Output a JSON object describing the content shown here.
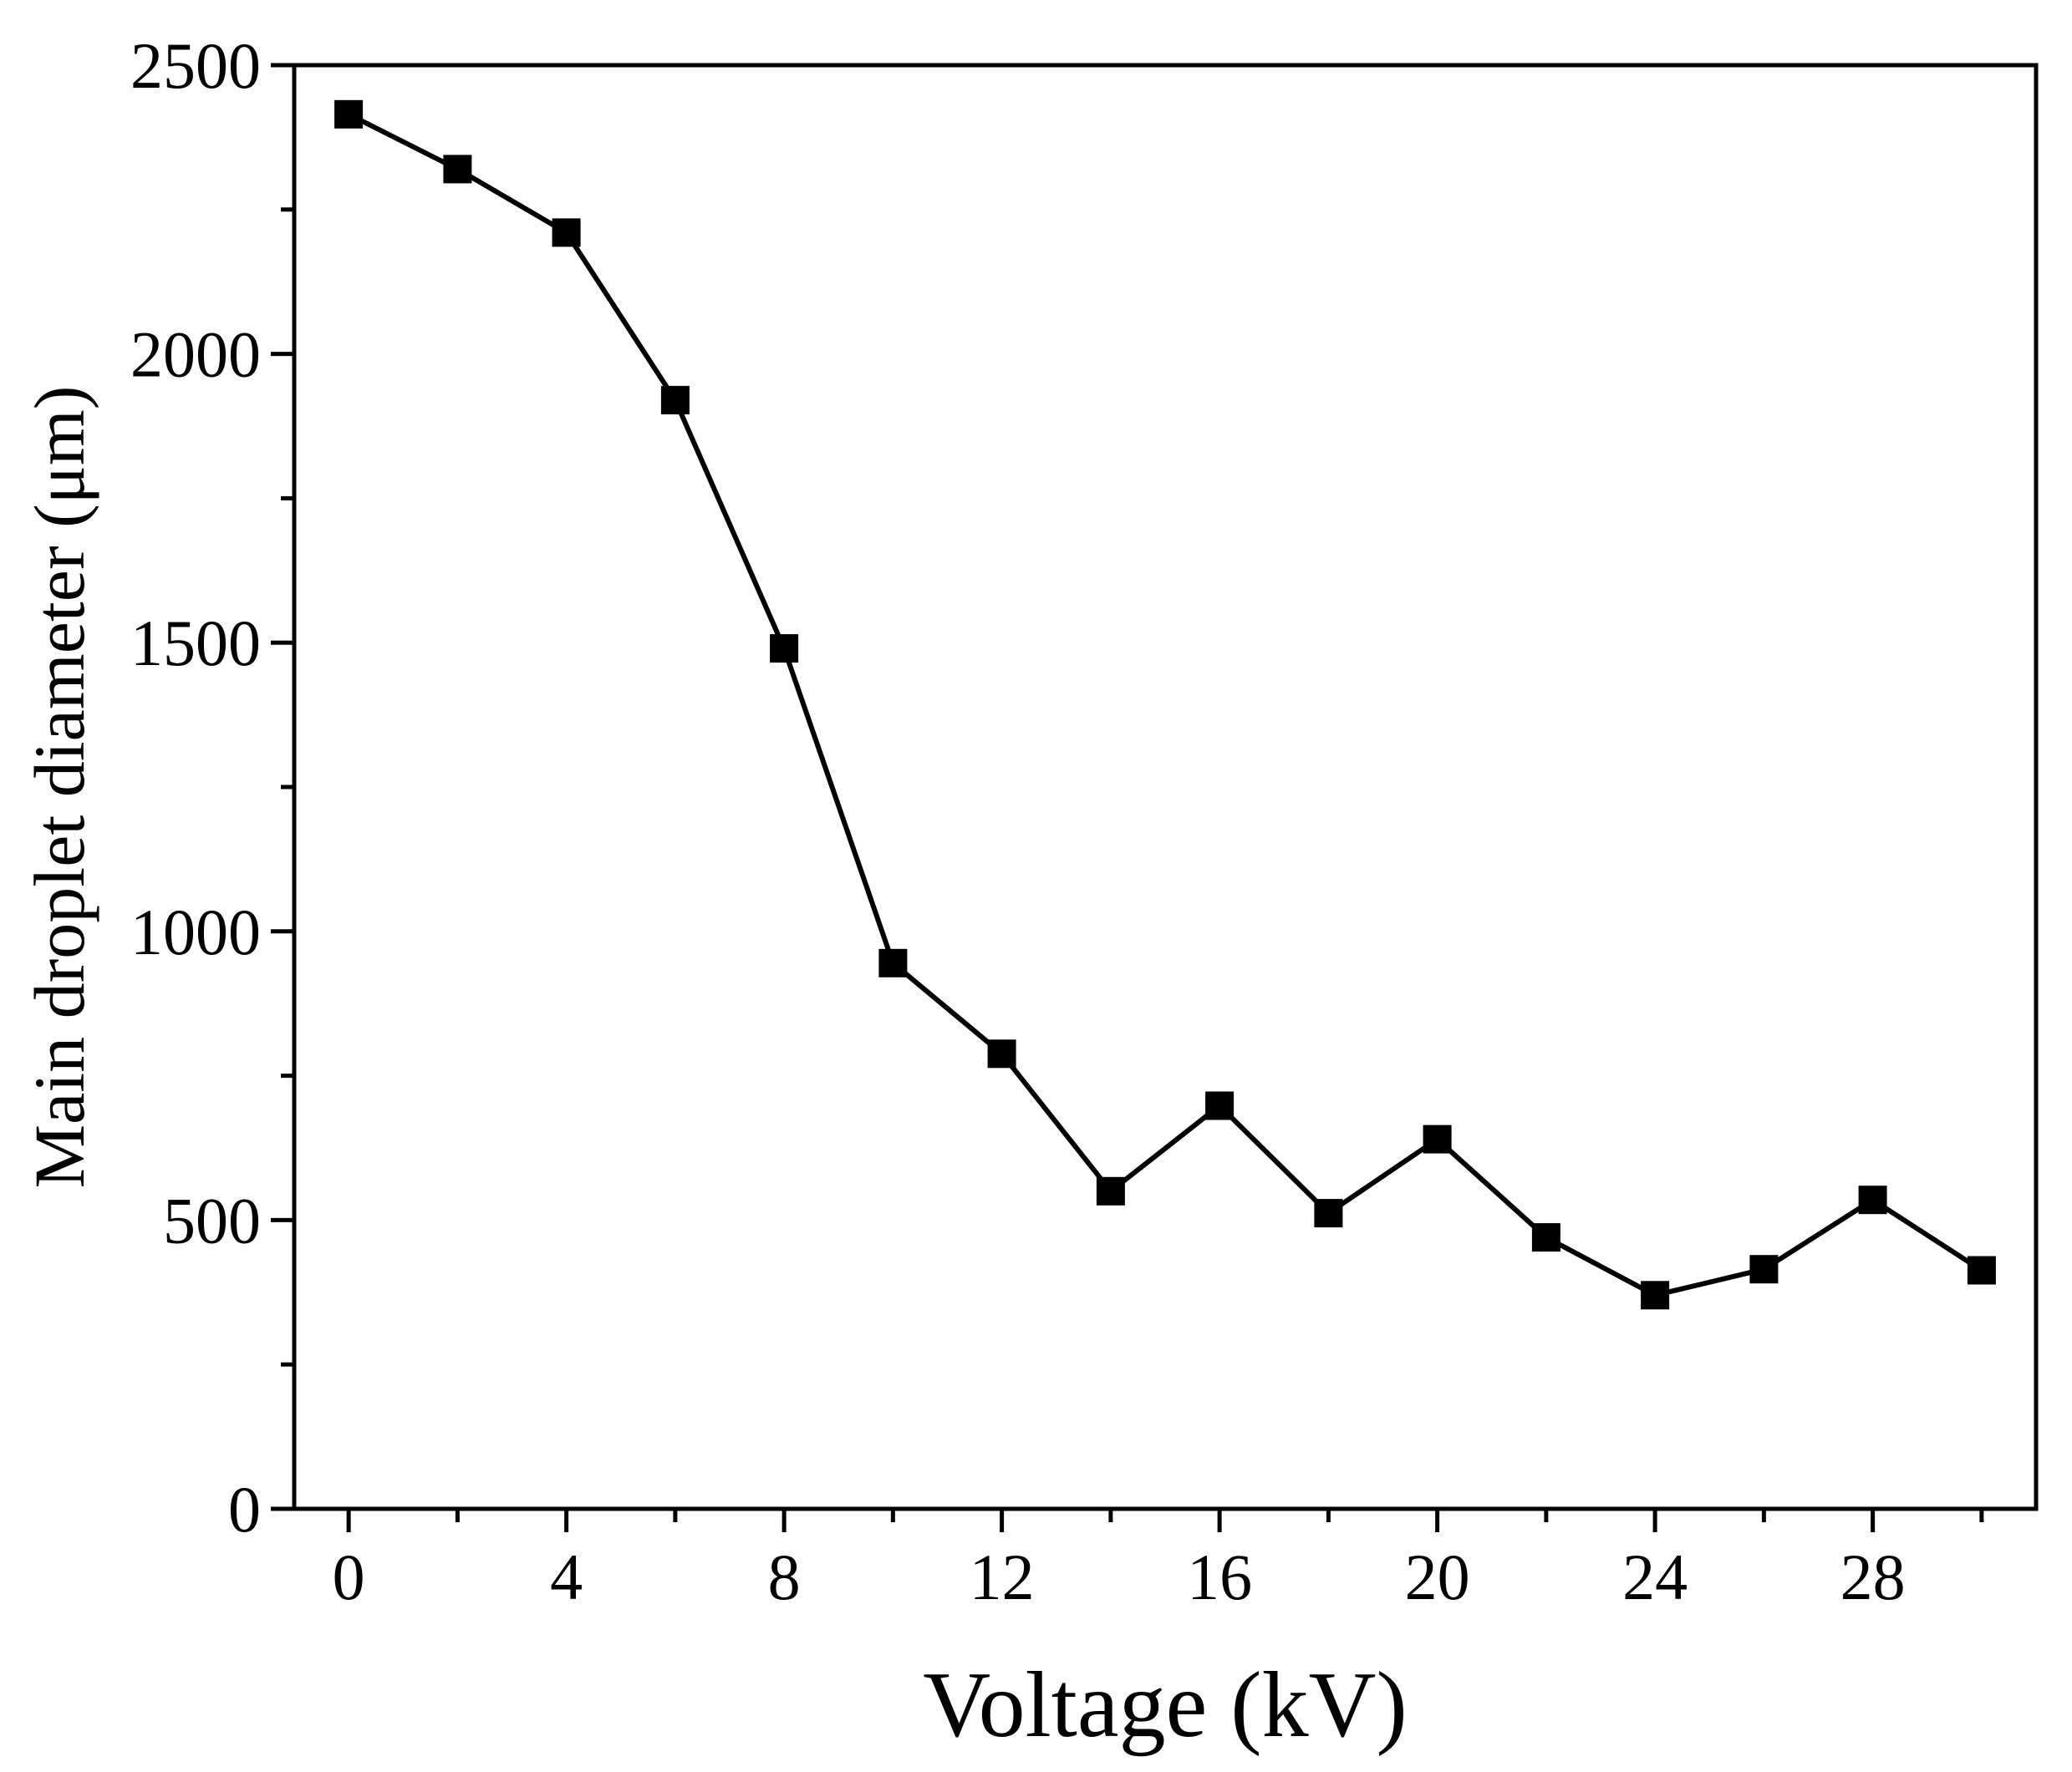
{
  "chart_data": {
    "type": "line",
    "title": "",
    "xlabel": "Voltage (kV)",
    "ylabel": "Main droplet diameter (μm)",
    "xlim": [
      -1,
      31
    ],
    "ylim": [
      0,
      2500
    ],
    "xticks": [
      0,
      4,
      8,
      12,
      16,
      20,
      24,
      28
    ],
    "xticks_minor": [
      2,
      6,
      10,
      14,
      18,
      22,
      26,
      30
    ],
    "yticks": [
      0,
      500,
      1000,
      1500,
      2000,
      2500
    ],
    "yticks_minor": [
      250,
      750,
      1250,
      1750,
      2250
    ],
    "grid": false,
    "legend": "none",
    "marker": "square",
    "color": "#000000",
    "series": [
      {
        "x": [
          0,
          2,
          4,
          6,
          8,
          10,
          12,
          14,
          16,
          18,
          20,
          22,
          24,
          26,
          28,
          30
        ],
        "y": [
          2415,
          2320,
          2210,
          1920,
          1490,
          945,
          788,
          550,
          698,
          512,
          640,
          470,
          370,
          415,
          535,
          413
        ]
      }
    ]
  }
}
